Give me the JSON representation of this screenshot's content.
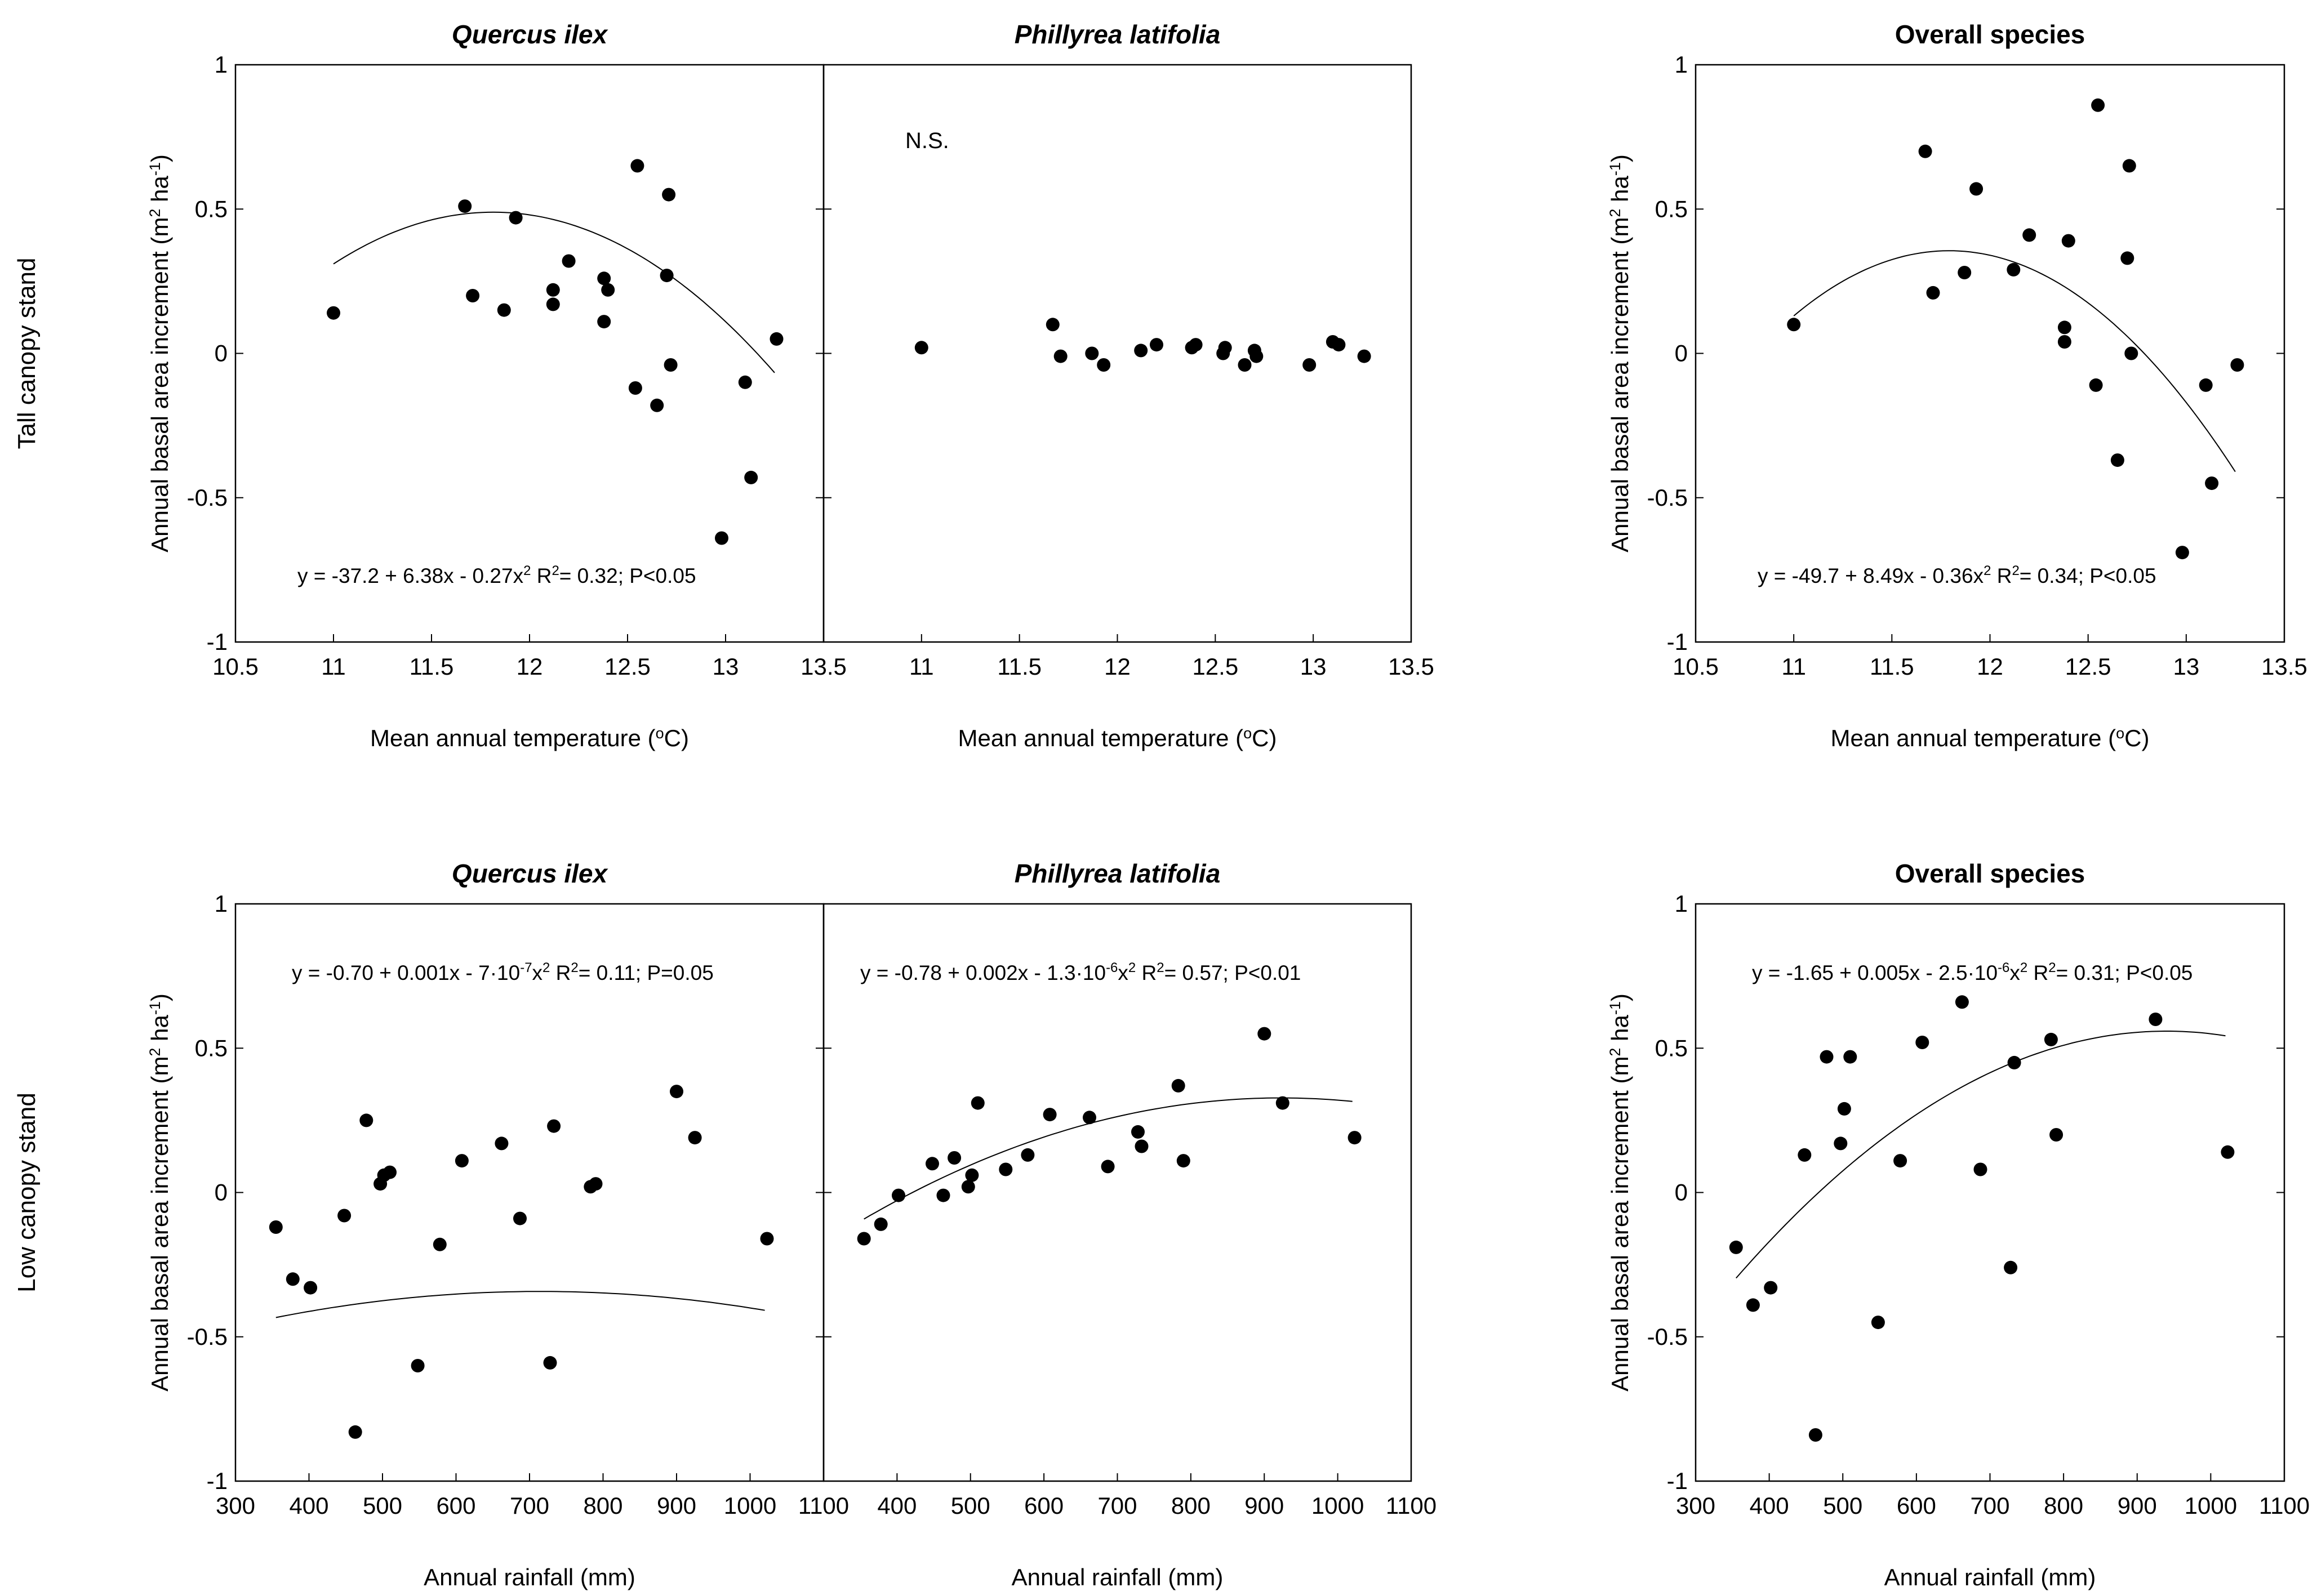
{
  "figure": {
    "row_labels": [
      "Tall canopy stand",
      "Low canopy stand"
    ],
    "y_axis_label": "Annual basal area increment",
    "y_axis_unit": "m² ha⁻¹",
    "x_label_temperature": "Mean annual temperature (°C)",
    "x_label_rainfall": "Annual rainfall (mm)"
  },
  "chart_data": [
    {
      "id": "tall-quercus",
      "type": "scatter",
      "row": 0,
      "col": 0,
      "title": "Quercus ilex",
      "title_italic": true,
      "xlabel": "Mean annual temperature (°C)",
      "ylabel": "Annual basal area increment (m² ha⁻¹)",
      "xlim": [
        10.5,
        13.5
      ],
      "ylim": [
        -1,
        1
      ],
      "xticks": [
        "10.5",
        "11",
        "11.5",
        "12",
        "12.5",
        "13",
        "13.5"
      ],
      "yticks": [
        "-1",
        "-0.5",
        "0",
        "0.5",
        "1"
      ],
      "points": [
        [
          11.0,
          0.14
        ],
        [
          11.67,
          0.51
        ],
        [
          11.71,
          0.2
        ],
        [
          11.87,
          0.15
        ],
        [
          11.93,
          0.47
        ],
        [
          12.12,
          0.22
        ],
        [
          12.12,
          0.17
        ],
        [
          12.2,
          0.32
        ],
        [
          12.38,
          0.11
        ],
        [
          12.38,
          0.26
        ],
        [
          12.4,
          0.22
        ],
        [
          12.54,
          -0.12
        ],
        [
          12.55,
          0.65
        ],
        [
          12.65,
          -0.18
        ],
        [
          12.7,
          0.27
        ],
        [
          12.71,
          0.55
        ],
        [
          12.72,
          -0.04
        ],
        [
          12.98,
          -0.64
        ],
        [
          13.1,
          -0.1
        ],
        [
          13.13,
          -0.43
        ],
        [
          13.26,
          0.05
        ]
      ],
      "fit": {
        "a": -37.2,
        "b": 6.38,
        "c": -0.27,
        "x_range": [
          11.0,
          13.25
        ]
      },
      "equation": "y = -37.2 + 6.38x - 0.27x² R²= 0.32; P<0.05"
    },
    {
      "id": "tall-phillyrea",
      "type": "scatter",
      "row": 0,
      "col": 1,
      "title": "Phillyrea latifolia",
      "title_italic": true,
      "xlabel": "Mean annual temperature (°C)",
      "xlim": [
        10.5,
        13.5
      ],
      "ylim": [
        -1,
        1
      ],
      "xticks": [
        "",
        "11",
        "11.5",
        "12",
        "12.5",
        "13",
        "13.5"
      ],
      "points": [
        [
          11.0,
          0.02
        ],
        [
          11.67,
          0.1
        ],
        [
          11.71,
          -0.01
        ],
        [
          11.87,
          0.0
        ],
        [
          11.93,
          -0.04
        ],
        [
          12.12,
          0.01
        ],
        [
          12.2,
          0.03
        ],
        [
          12.38,
          0.02
        ],
        [
          12.4,
          0.03
        ],
        [
          12.54,
          0.0
        ],
        [
          12.55,
          0.02
        ],
        [
          12.65,
          -0.04
        ],
        [
          12.7,
          0.01
        ],
        [
          12.71,
          -0.01
        ],
        [
          12.98,
          -0.04
        ],
        [
          13.1,
          0.04
        ],
        [
          13.13,
          0.03
        ],
        [
          13.26,
          -0.01
        ]
      ],
      "annotation": "N.S."
    },
    {
      "id": "tall-overall",
      "type": "scatter",
      "row": 0,
      "col": 2,
      "title": "Overall species",
      "title_italic": false,
      "xlabel": "Mean annual temperature (°C)",
      "ylabel": "Annual basal area increment (m² ha⁻¹)",
      "xlim": [
        10.5,
        13.5
      ],
      "ylim": [
        -1,
        1
      ],
      "xticks": [
        "10.5",
        "11",
        "11.5",
        "12",
        "12.5",
        "13",
        "13.5"
      ],
      "yticks": [
        "-1",
        "-0.5",
        "0",
        "0.5",
        "1"
      ],
      "points": [
        [
          11.0,
          0.1
        ],
        [
          11.67,
          0.7
        ],
        [
          11.71,
          0.21
        ],
        [
          11.87,
          0.28
        ],
        [
          11.93,
          0.57
        ],
        [
          12.12,
          0.29
        ],
        [
          12.2,
          0.41
        ],
        [
          12.38,
          0.09
        ],
        [
          12.38,
          0.04
        ],
        [
          12.4,
          0.39
        ],
        [
          12.54,
          -0.11
        ],
        [
          12.55,
          0.86
        ],
        [
          12.65,
          -0.37
        ],
        [
          12.7,
          0.33
        ],
        [
          12.71,
          0.65
        ],
        [
          12.72,
          0.0
        ],
        [
          12.98,
          -0.69
        ],
        [
          13.1,
          -0.11
        ],
        [
          13.13,
          -0.45
        ],
        [
          13.26,
          -0.04
        ]
      ],
      "fit": {
        "a": -49.7,
        "b": 8.49,
        "c": -0.36,
        "x_range": [
          11.0,
          13.25
        ]
      },
      "equation": "y = -49.7 + 8.49x - 0.36x² R²= 0.34; P<0.05"
    },
    {
      "id": "low-quercus",
      "type": "scatter",
      "row": 1,
      "col": 0,
      "title": "Quercus ilex",
      "title_italic": true,
      "xlabel": "Annual rainfall (mm)",
      "ylabel": "Annual basal area increment (m² ha⁻¹)",
      "xlim": [
        300,
        1100
      ],
      "ylim": [
        -1,
        1
      ],
      "xticks": [
        "300",
        "400",
        "500",
        "600",
        "700",
        "800",
        "900",
        "1000",
        "1100"
      ],
      "yticks": [
        "-1",
        "-0.5",
        "0",
        "0.5",
        "1"
      ],
      "points": [
        [
          355,
          -0.12
        ],
        [
          378,
          -0.3
        ],
        [
          402,
          -0.33
        ],
        [
          448,
          -0.08
        ],
        [
          463,
          -0.83
        ],
        [
          478,
          0.25
        ],
        [
          497,
          0.03
        ],
        [
          502,
          0.06
        ],
        [
          510,
          0.07
        ],
        [
          548,
          -0.6
        ],
        [
          578,
          -0.18
        ],
        [
          608,
          0.11
        ],
        [
          662,
          0.17
        ],
        [
          687,
          -0.09
        ],
        [
          728,
          -0.59
        ],
        [
          733,
          0.23
        ],
        [
          783,
          0.02
        ],
        [
          790,
          0.03
        ],
        [
          900,
          0.35
        ],
        [
          925,
          0.19
        ],
        [
          1023,
          -0.16
        ]
      ],
      "fit": {
        "a": -0.7,
        "b": 0.001,
        "c": -7e-07,
        "x_range": [
          355,
          1020
        ]
      },
      "equation": "y = -0.70 + 0.001x - 7·10⁻⁷x² R²= 0.11; P=0.05"
    },
    {
      "id": "low-phillyrea",
      "type": "scatter",
      "row": 1,
      "col": 1,
      "title": "Phillyrea latifolia",
      "title_italic": true,
      "xlabel": "Annual rainfall (mm)",
      "xlim": [
        300,
        1100
      ],
      "ylim": [
        -1,
        1
      ],
      "xticks": [
        "",
        "400",
        "500",
        "600",
        "700",
        "800",
        "900",
        "1000",
        "1100"
      ],
      "points": [
        [
          355,
          -0.16
        ],
        [
          378,
          -0.11
        ],
        [
          402,
          -0.01
        ],
        [
          448,
          0.1
        ],
        [
          463,
          -0.01
        ],
        [
          478,
          0.12
        ],
        [
          497,
          0.02
        ],
        [
          502,
          0.06
        ],
        [
          510,
          0.31
        ],
        [
          548,
          0.08
        ],
        [
          578,
          0.13
        ],
        [
          608,
          0.27
        ],
        [
          662,
          0.26
        ],
        [
          687,
          0.09
        ],
        [
          728,
          0.21
        ],
        [
          733,
          0.16
        ],
        [
          783,
          0.37
        ],
        [
          790,
          0.11
        ],
        [
          900,
          0.55
        ],
        [
          925,
          0.31
        ],
        [
          1023,
          0.19
        ]
      ],
      "fit": {
        "a": -0.78,
        "b": 0.0024,
        "c": -1.3e-06,
        "x_range": [
          355,
          1020
        ]
      },
      "equation": "y = -0.78 + 0.002x - 1.3·10⁻⁶x² R²= 0.57; P<0.01"
    },
    {
      "id": "low-overall",
      "type": "scatter",
      "row": 1,
      "col": 2,
      "title": "Overall species",
      "title_italic": false,
      "xlabel": "Annual rainfall (mm)",
      "ylabel": "Annual basal area increment (m² ha⁻¹)",
      "xlim": [
        300,
        1100
      ],
      "ylim": [
        -1,
        1
      ],
      "xticks": [
        "300",
        "400",
        "500",
        "600",
        "700",
        "800",
        "900",
        "1000",
        "1100"
      ],
      "yticks": [
        "-1",
        "-0.5",
        "0",
        "0.5",
        "1"
      ],
      "points": [
        [
          355,
          -0.19
        ],
        [
          378,
          -0.39
        ],
        [
          402,
          -0.33
        ],
        [
          448,
          0.13
        ],
        [
          463,
          -0.84
        ],
        [
          478,
          0.47
        ],
        [
          497,
          0.17
        ],
        [
          502,
          0.29
        ],
        [
          510,
          0.47
        ],
        [
          548,
          -0.45
        ],
        [
          578,
          0.11
        ],
        [
          608,
          0.52
        ],
        [
          662,
          0.66
        ],
        [
          687,
          0.08
        ],
        [
          728,
          -0.26
        ],
        [
          733,
          0.45
        ],
        [
          783,
          0.53
        ],
        [
          790,
          0.2
        ],
        [
          925,
          0.6
        ],
        [
          1023,
          0.14
        ]
      ],
      "fit": {
        "a": -1.65,
        "b": 0.0047,
        "c": -2.5e-06,
        "x_range": [
          355,
          1020
        ]
      },
      "equation": "y = -1.65 + 0.005x - 2.5·10⁻⁶x² R²= 0.31; P<0.05"
    }
  ]
}
